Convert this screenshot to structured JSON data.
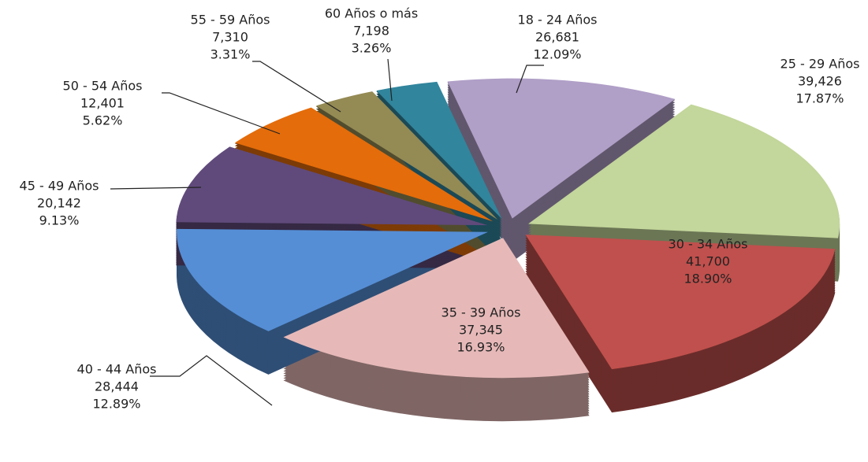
{
  "chart_data": {
    "type": "pie",
    "categories": [
      "18 - 24 Años",
      "25 - 29 Años",
      "30 - 34 Años",
      "35 - 39 Años",
      "40 - 44 Años",
      "45 - 49 Años",
      "50 - 54 Años",
      "55 - 59 Años",
      "60 Años o más"
    ],
    "values": [
      26681,
      39426,
      41700,
      37345,
      28444,
      20142,
      12401,
      7310,
      7198
    ],
    "value_labels": [
      "26,681",
      "39,426",
      "41,700",
      "37,345",
      "28,444",
      "20,142",
      "12,401",
      "7,310",
      "7,198"
    ],
    "percentages": [
      12.09,
      17.87,
      18.9,
      16.93,
      12.89,
      9.13,
      5.62,
      3.31,
      3.26
    ],
    "percent_labels": [
      "12.09%",
      "17.87%",
      "18.90%",
      "16.93%",
      "12.89%",
      "9.13%",
      "5.62%",
      "3.31%",
      "3.26%"
    ],
    "colors": [
      "#b09fc7",
      "#c3d69b",
      "#c0504d",
      "#e6b9b8",
      "#558ed5",
      "#604a7b",
      "#e46c0a",
      "#948a54",
      "#31859c"
    ]
  }
}
